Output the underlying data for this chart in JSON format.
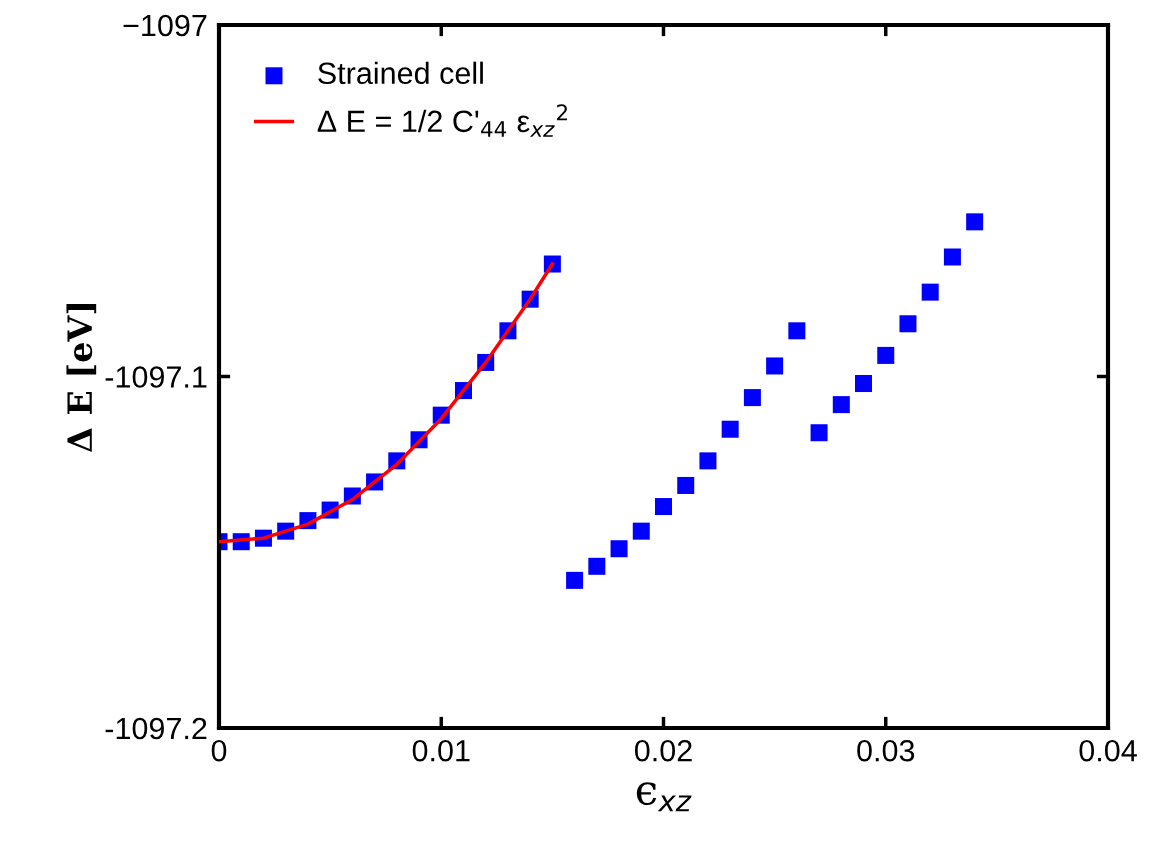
{
  "chart_data": {
    "type": "scatter",
    "xlabel": "ϵ$_{xz}$",
    "ylabel": "Δ E [eV]",
    "xlim": [
      0,
      0.04
    ],
    "xticks": [
      0,
      0.01,
      0.02,
      0.03,
      0.04
    ],
    "ylim": [
      -1097.2,
      -1097
    ],
    "yticks": [
      {
        "value": -1097.2,
        "label": "-1097.2"
      },
      {
        "value": -1097.1,
        "label": "-1097.1"
      },
      {
        "value": -1097,
        "label": "−1097"
      }
    ],
    "grid": false,
    "legend": "top left",
    "series": [
      {
        "name": "Strained cell",
        "color": "#0000ff",
        "marker": "square",
        "x": [
          0,
          0.001,
          0.002,
          0.003,
          0.004,
          0.005,
          0.006,
          0.007,
          0.008,
          0.009,
          0.01,
          0.011,
          0.012,
          0.013,
          0.014,
          0.015,
          0.016,
          0.017,
          0.018,
          0.019,
          0.02,
          0.021,
          0.022,
          0.023,
          0.024,
          0.025,
          0.026,
          0.027,
          0.028,
          0.029,
          0.03,
          0.031,
          0.032,
          0.033,
          0.034
        ],
        "values": [
          -1097.147,
          -1097.147,
          -1097.146,
          -1097.144,
          -1097.141,
          -1097.138,
          -1097.134,
          -1097.13,
          -1097.124,
          -1097.118,
          -1097.111,
          -1097.104,
          -1097.096,
          -1097.087,
          -1097.078,
          -1097.068,
          -1097.158,
          -1097.154,
          -1097.149,
          -1097.144,
          -1097.137,
          -1097.131,
          -1097.124,
          -1097.115,
          -1097.106,
          -1097.097,
          -1097.087,
          -1097.116,
          -1097.108,
          -1097.102,
          -1097.094,
          -1097.085,
          -1097.076,
          -1097.066,
          -1097.056
        ]
      },
      {
        "name": "Δ E = 1/2 C'$_{44}$ ε$_{xz}$$^{2}$",
        "type": "line",
        "color": "#ff0000",
        "line_style": "solid",
        "x": [
          0,
          0.002,
          0.004,
          0.006,
          0.008,
          0.01,
          0.012,
          0.013,
          0.014,
          0.015
        ],
        "values": [
          -1097.147,
          -1097.146,
          -1097.142,
          -1097.135,
          -1097.125,
          -1097.112,
          -1097.096,
          -1097.087,
          -1097.078,
          -1097.068
        ]
      }
    ]
  }
}
